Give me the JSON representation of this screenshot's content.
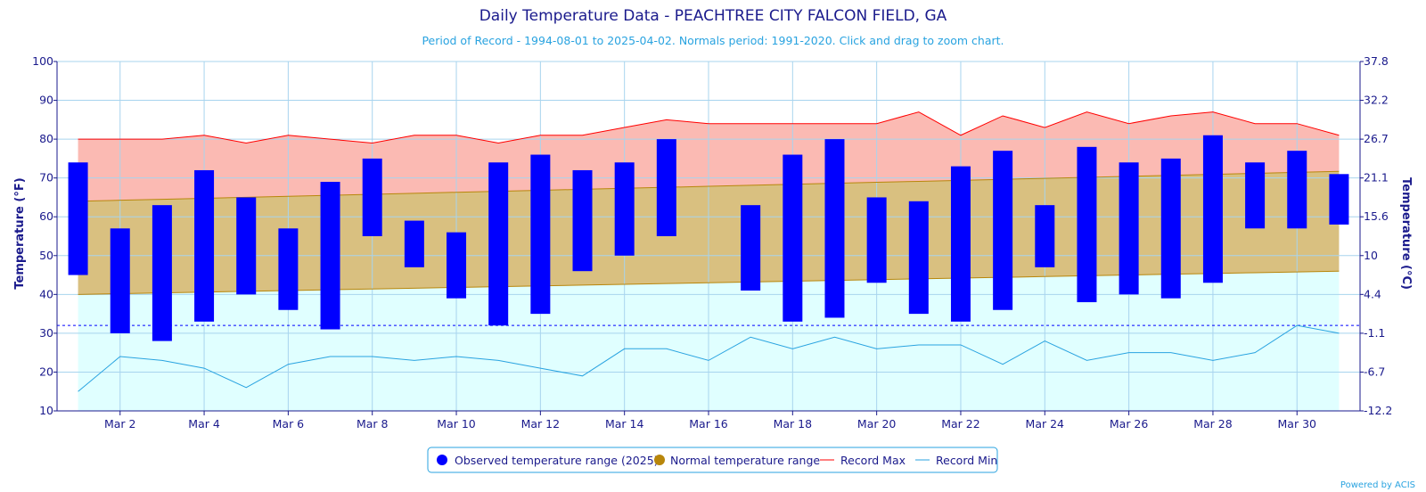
{
  "chart_data": {
    "type": "bar",
    "title": "Daily Temperature Data - PEACHTREE CITY FALCON FIELD, GA",
    "subtitle": "Period of Record - 1994-08-01 to 2025-04-02. Normals period: 1991-2020. Click and drag to zoom chart.",
    "ylabel": "Temperature (°F)",
    "ylabel_right": "Temperature (°C)",
    "ylim": [
      10,
      100
    ],
    "y_ticks": [
      10,
      20,
      30,
      40,
      50,
      60,
      70,
      80,
      90,
      100
    ],
    "y_ticks_right": [
      "-12.2",
      "-6.7",
      "-1.1",
      "4.4",
      "10",
      "15.6",
      "21.1",
      "26.7",
      "32.2",
      "37.8"
    ],
    "x_ticks": [
      "Mar 2",
      "Mar 4",
      "Mar 6",
      "Mar 8",
      "Mar 10",
      "Mar 12",
      "Mar 14",
      "Mar 16",
      "Mar 18",
      "Mar 20",
      "Mar 22",
      "Mar 24",
      "Mar 26",
      "Mar 28",
      "Mar 30"
    ],
    "x_tick_days": [
      2,
      4,
      6,
      8,
      10,
      12,
      14,
      16,
      18,
      20,
      22,
      24,
      26,
      28,
      30
    ],
    "days": [
      1,
      2,
      3,
      4,
      5,
      6,
      7,
      8,
      9,
      10,
      11,
      12,
      13,
      14,
      15,
      16,
      17,
      18,
      19,
      20,
      21,
      22,
      23,
      24,
      25,
      26,
      27,
      28,
      29,
      30,
      31
    ],
    "freezing_line": 32,
    "grid": true,
    "legend_position": "bottom-center",
    "series": [
      {
        "name": "Observed temperature range (2025)",
        "color": "#0000ff",
        "low": [
          45,
          30,
          28,
          33,
          40,
          36,
          31,
          55,
          47,
          39,
          32,
          35,
          46,
          50,
          55,
          null,
          41,
          33,
          34,
          43,
          35,
          33,
          36,
          47,
          38,
          40,
          39,
          43,
          57,
          57,
          58
        ],
        "high": [
          74,
          57,
          63,
          72,
          65,
          57,
          69,
          75,
          59,
          56,
          74,
          76,
          72,
          74,
          80,
          null,
          63,
          76,
          80,
          65,
          64,
          73,
          77,
          63,
          78,
          74,
          75,
          81,
          74,
          77,
          71
        ]
      },
      {
        "name": "Normal temperature range",
        "color": "#b8860b",
        "low_start": 40,
        "low_end": 46,
        "high_start": 64,
        "high_end": 71.7
      },
      {
        "name": "Record Max",
        "color": "#ff0000",
        "values": [
          80,
          80,
          80,
          81,
          79,
          81,
          80,
          79,
          81,
          81,
          79,
          81,
          81,
          83,
          85,
          84,
          84,
          84,
          84,
          84,
          87,
          81,
          86,
          83,
          87,
          84,
          86,
          87,
          84,
          84,
          81
        ]
      },
      {
        "name": "Record Min",
        "color": "#29a3e0",
        "values": [
          15,
          24,
          23,
          21,
          16,
          22,
          24,
          24,
          23,
          24,
          23,
          21,
          19,
          26,
          26,
          23,
          29,
          26,
          29,
          26,
          27,
          27,
          22,
          28,
          23,
          25,
          25,
          23,
          25,
          32,
          30
        ]
      }
    ],
    "credits": "Powered by ACIS"
  }
}
